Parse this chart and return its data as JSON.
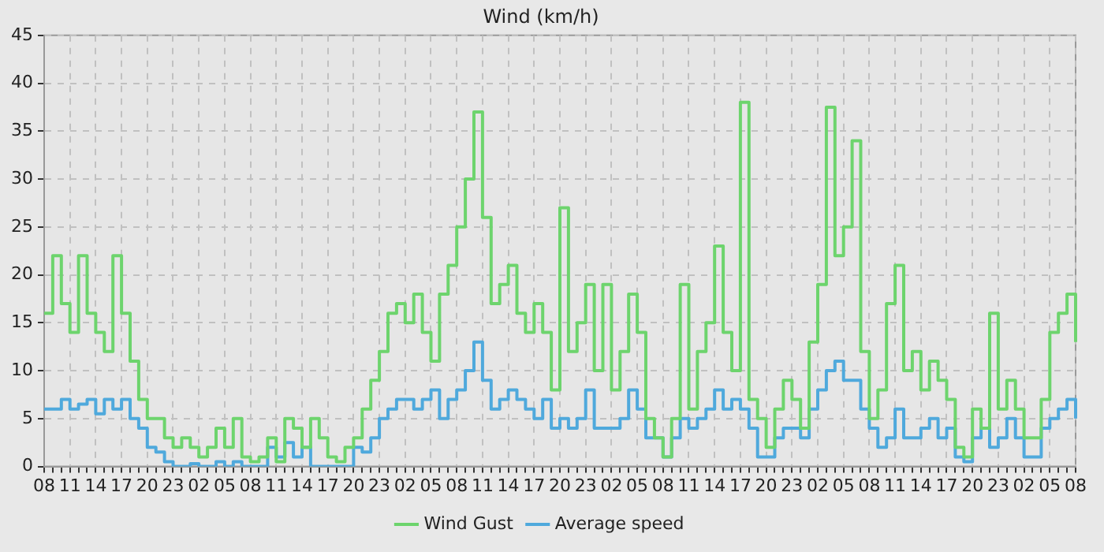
{
  "chart_data": {
    "type": "step",
    "title": "Wind (km/h)",
    "categories": [
      "08",
      null,
      null,
      "11",
      null,
      null,
      "14",
      null,
      null,
      "17",
      null,
      null,
      "20",
      null,
      null,
      "23",
      null,
      null,
      "02",
      null,
      null,
      "05",
      null,
      null,
      "08",
      null,
      null,
      "11",
      null,
      null,
      "14",
      null,
      null,
      "17",
      null,
      null,
      "20",
      null,
      null,
      "23",
      null,
      null,
      "02",
      null,
      null,
      "05",
      null,
      null,
      "08",
      null,
      null,
      "11",
      null,
      null,
      "14",
      null,
      null,
      "17",
      null,
      null,
      "20",
      null,
      null,
      "23",
      null,
      null,
      "02",
      null,
      null,
      "05",
      null,
      null,
      "08",
      null,
      null,
      "11",
      null,
      null,
      "14",
      null,
      null,
      "17",
      null,
      null,
      "20",
      null,
      null,
      "23",
      null,
      null,
      "02",
      null,
      null,
      "05",
      null,
      null,
      "08",
      null,
      null,
      "11",
      null,
      null,
      "14",
      null,
      null,
      "17",
      null,
      null,
      "20",
      null,
      null,
      "23",
      null,
      null,
      "02",
      null,
      null,
      "05",
      null,
      null,
      "08"
    ],
    "ylim": [
      0,
      45
    ],
    "yticks": [
      0,
      5,
      10,
      15,
      20,
      25,
      30,
      35,
      40,
      45
    ],
    "grid": true,
    "legend": "bottom",
    "marker": "none",
    "line_style": "solid",
    "series": [
      {
        "name": "Wind Gust",
        "color": "#6dd46d",
        "values": [
          16,
          22,
          17,
          14,
          22,
          16,
          14,
          12,
          22,
          16,
          11,
          7,
          5,
          5,
          3,
          2,
          3,
          2,
          1,
          2,
          4,
          2,
          5,
          1,
          0.5,
          1,
          3,
          0.5,
          5,
          4,
          2,
          5,
          3,
          1,
          0.5,
          2,
          3,
          6,
          9,
          12,
          16,
          17,
          15,
          18,
          14,
          11,
          18,
          21,
          25,
          30,
          37,
          26,
          17,
          19,
          21,
          16,
          14,
          17,
          14,
          8,
          27,
          12,
          15,
          19,
          10,
          19,
          8,
          12,
          18,
          14,
          5,
          3,
          1,
          5,
          19,
          6,
          12,
          15,
          23,
          14,
          10,
          38,
          7,
          5,
          2,
          6,
          9,
          7,
          4,
          13,
          19,
          37.5,
          22,
          25,
          34,
          12,
          5,
          8,
          17,
          21,
          10,
          12,
          8,
          11,
          9,
          7,
          2,
          1,
          6,
          4,
          16,
          6,
          9,
          6,
          3,
          3,
          7,
          14,
          16,
          18,
          13
        ]
      },
      {
        "name": "Average speed",
        "color": "#4fa9dc",
        "values": [
          6,
          6,
          7,
          6,
          6.5,
          7,
          5.5,
          7,
          6,
          7,
          5,
          4,
          2,
          1.5,
          0.5,
          0,
          0,
          0.3,
          0,
          0,
          0.5,
          0,
          0.5,
          0,
          0,
          0,
          2,
          1,
          2.5,
          1,
          2,
          0,
          0,
          0,
          0,
          0,
          2,
          1.5,
          3,
          5,
          6,
          7,
          7,
          6,
          7,
          8,
          5,
          7,
          8,
          10,
          13,
          9,
          6,
          7,
          8,
          7,
          6,
          5,
          7,
          4,
          5,
          4,
          5,
          8,
          4,
          4,
          4,
          5,
          8,
          6,
          3,
          3,
          1,
          3,
          5,
          4,
          5,
          6,
          8,
          6,
          7,
          6,
          4,
          1,
          1,
          3,
          4,
          4,
          3,
          6,
          8,
          10,
          11,
          9,
          9,
          6,
          4,
          2,
          3,
          6,
          3,
          3,
          4,
          5,
          3,
          4,
          1,
          0.5,
          3,
          4,
          2,
          3,
          5,
          3,
          1,
          1,
          4,
          5,
          6,
          7,
          5
        ]
      }
    ]
  }
}
